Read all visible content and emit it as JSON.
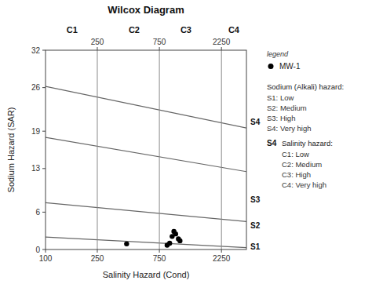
{
  "chart_data": {
    "type": "scatter",
    "title": "Wilcox Diagram",
    "xlabel": "Salinity Hazard (Cond)",
    "ylabel": "Sodium Hazard (SAR)",
    "log": "x",
    "xlim": [
      100,
      3500
    ],
    "xticks": [
      100,
      250,
      750,
      2250
    ],
    "x2ticks": [
      250,
      750,
      2250
    ],
    "ylim": [
      0,
      32
    ],
    "yticks": [
      0,
      6,
      13,
      19,
      26,
      32
    ],
    "vlines": [
      250,
      750,
      2250
    ],
    "vline_color": "#888888",
    "series": [
      {
        "type": "line",
        "color": "#666666",
        "x": [
          100,
          3500
        ],
        "values": [
          2.0,
          0.3
        ]
      },
      {
        "type": "line",
        "color": "#666666",
        "x": [
          100,
          3500
        ],
        "values": [
          7.5,
          4.5
        ]
      },
      {
        "type": "line",
        "color": "#666666",
        "x": [
          100,
          3500
        ],
        "values": [
          18.0,
          12.5
        ]
      },
      {
        "type": "line",
        "color": "#666666",
        "x": [
          100,
          3500
        ],
        "values": [
          26.2,
          19.5
        ]
      },
      {
        "name": "MW-1",
        "type": "scatter",
        "marker": "circle",
        "color": "#000000",
        "x": [
          420,
          860,
          900,
          940,
          970,
          1000,
          1050,
          1080
        ],
        "values": [
          0.9,
          0.7,
          1.0,
          2.1,
          2.9,
          2.5,
          1.7,
          1.4
        ]
      }
    ],
    "c_labels": [
      {
        "text": "C1",
        "x": 160
      },
      {
        "text": "C2",
        "x": 480
      },
      {
        "text": "C3",
        "x": 1200
      },
      {
        "text": "C4",
        "x": 2800
      }
    ],
    "s_labels": [
      {
        "text": "S1",
        "y": 0.5
      },
      {
        "text": "S2",
        "y": 3.8
      },
      {
        "text": "S3",
        "y": 8.0
      },
      {
        "text": "S4",
        "y": 20.5
      }
    ],
    "legend": "right",
    "legend_title": "legend",
    "hazard_notes": [
      {
        "title": "Sodium (Alkali) hazard:",
        "items": [
          "S1: Low",
          "S2: Medium",
          "S3: High",
          "S4: Very high"
        ]
      },
      {
        "tag": "S4",
        "title": "Salinity hazard:",
        "items": [
          "C1: Low",
          "C2: Medium",
          "C3: High",
          "C4: Very high"
        ]
      }
    ]
  }
}
